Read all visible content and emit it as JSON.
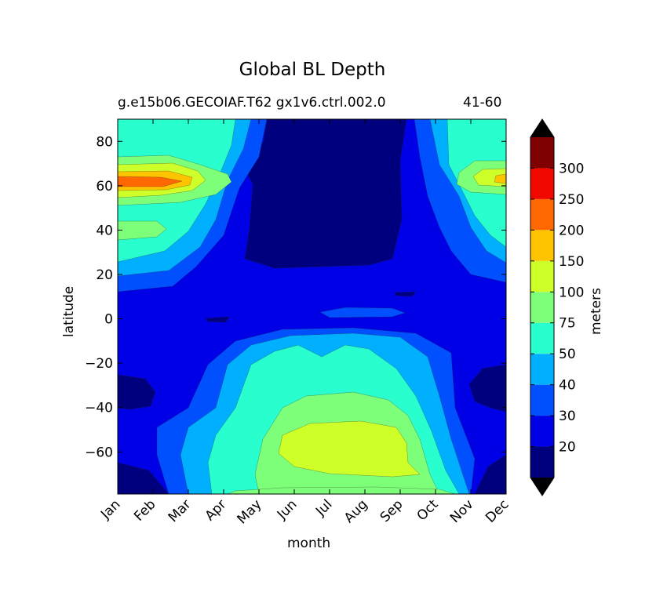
{
  "chart_data": {
    "type": "contour",
    "title": "Global BL Depth",
    "subtitle": "g.e15b06.GECOIAF.T62 gx1v6.ctrl.002.0",
    "period": "41-60",
    "xlabel": "month",
    "ylabel": "latitude",
    "xticks": [
      "Jan",
      "Feb",
      "Mar",
      "Apr",
      "May",
      "Jun",
      "Jul",
      "Aug",
      "Sep",
      "Oct",
      "Nov",
      "Dec"
    ],
    "yticks": [
      80,
      60,
      40,
      20,
      0,
      -20,
      -40,
      -60
    ],
    "ylim": [
      -79,
      90
    ],
    "colorbar": {
      "label": "meters",
      "levels": [
        10,
        20,
        30,
        40,
        50,
        75,
        100,
        150,
        200,
        250,
        300,
        350
      ],
      "tick_labels": [
        "20",
        "30",
        "40",
        "50",
        "75",
        "100",
        "150",
        "200",
        "250",
        "300"
      ],
      "colors": [
        "#00007f",
        "#0000e6",
        "#0050ff",
        "#00b0ff",
        "#29ffce",
        "#7dff7a",
        "#ceff29",
        "#ffc400",
        "#ff6800",
        "#f10800",
        "#7f0000"
      ],
      "extend_low_color": "#000000",
      "extend_high_color": "#000000"
    }
  }
}
